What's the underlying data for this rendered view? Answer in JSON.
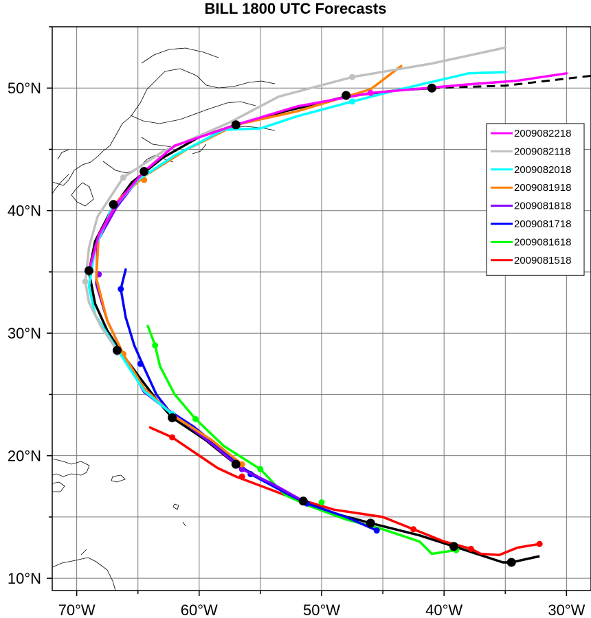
{
  "title": "BILL 1800 UTC Forecasts",
  "chart_data": {
    "type": "line",
    "title": "BILL 1800 UTC Forecasts",
    "xlim": [
      -72,
      -28
    ],
    "ylim": [
      9,
      55
    ],
    "x_ticks": [
      {
        "value": -70,
        "label": "70°W"
      },
      {
        "value": -60,
        "label": "60°W"
      },
      {
        "value": -50,
        "label": "50°W"
      },
      {
        "value": -40,
        "label": "40°W"
      },
      {
        "value": -30,
        "label": "30°W"
      }
    ],
    "y_ticks": [
      {
        "value": 10,
        "label": "10°N"
      },
      {
        "value": 20,
        "label": "20°N"
      },
      {
        "value": 30,
        "label": "30°N"
      },
      {
        "value": 40,
        "label": "40°N"
      },
      {
        "value": 50,
        "label": "50°N"
      }
    ],
    "grid": true,
    "legend_position": "right",
    "best_track": {
      "color": "#000000",
      "points": [
        [
          -32.2,
          11.8
        ],
        [
          -34.5,
          11.3
        ],
        [
          -35.2,
          11.3
        ],
        [
          -39.2,
          12.6
        ],
        [
          -42,
          13.5
        ],
        [
          -46,
          14.5
        ],
        [
          -49,
          15.3
        ],
        [
          -51.5,
          16.3
        ],
        [
          -54,
          17.6
        ],
        [
          -57,
          19.3
        ],
        [
          -59.5,
          21.3
        ],
        [
          -62.2,
          23.1
        ],
        [
          -63.5,
          24.6
        ],
        [
          -64.8,
          26.3
        ],
        [
          -66.2,
          28.2
        ],
        [
          -67.5,
          30.2
        ],
        [
          -68.5,
          32.4
        ],
        [
          -69,
          35
        ],
        [
          -68.5,
          37.5
        ],
        [
          -67.2,
          40
        ],
        [
          -65.5,
          42.3
        ],
        [
          -63,
          44.3
        ],
        [
          -60,
          46
        ],
        [
          -57,
          47
        ],
        [
          -53,
          48.1
        ],
        [
          -48,
          49.3
        ],
        [
          -44,
          49.8
        ],
        [
          -41,
          50
        ]
      ],
      "markers": [
        [
          -34.5,
          11.3
        ],
        [
          -39.2,
          12.6
        ],
        [
          -46,
          14.5
        ],
        [
          -51.5,
          16.3
        ],
        [
          -57,
          19.3
        ],
        [
          -62.2,
          23.1
        ],
        [
          -66.7,
          28.6
        ],
        [
          -69,
          35.1
        ],
        [
          -67,
          40.5
        ],
        [
          -64.5,
          43.2
        ],
        [
          -57,
          47
        ],
        [
          -48,
          49.4
        ],
        [
          -41,
          50
        ]
      ]
    },
    "extended_track": {
      "color": "#000000",
      "points": [
        [
          -41,
          50
        ],
        [
          -35,
          50.2
        ],
        [
          -28,
          51
        ]
      ]
    },
    "series": [
      {
        "name": "2009082218",
        "color": "#ff00ff",
        "points": [
          [
            -69,
            35.1
          ],
          [
            -68.2,
            38
          ],
          [
            -66.8,
            40.5
          ],
          [
            -64.5,
            43.2
          ],
          [
            -62,
            45.3
          ],
          [
            -57,
            47
          ],
          [
            -52,
            48.5
          ],
          [
            -46,
            49.6
          ],
          [
            -38,
            50.3
          ],
          [
            -34,
            50.6
          ],
          [
            -30,
            51.2
          ]
        ],
        "markers": [
          [
            -69,
            35.1
          ],
          [
            -64.5,
            43.2
          ],
          [
            -46,
            49.6
          ]
        ]
      },
      {
        "name": "2009082118",
        "color": "#c0c0c0",
        "points": [
          [
            -66.7,
            28.6
          ],
          [
            -68,
            30.5
          ],
          [
            -69,
            32.5
          ],
          [
            -69.3,
            34.2
          ],
          [
            -69,
            37
          ],
          [
            -68.3,
            39.5
          ],
          [
            -66.2,
            42.7
          ],
          [
            -63,
            44.8
          ],
          [
            -57.5,
            47.2
          ],
          [
            -53.5,
            49.3
          ],
          [
            -47.5,
            50.9
          ],
          [
            -41,
            52
          ],
          [
            -35,
            53.3
          ]
        ],
        "markers": [
          [
            -66.7,
            28.4
          ],
          [
            -69.3,
            34.2
          ],
          [
            -66.2,
            42.7
          ],
          [
            -47.5,
            50.9
          ]
        ]
      },
      {
        "name": "2009082018",
        "color": "#00ffff",
        "points": [
          [
            -62.2,
            23.4
          ],
          [
            -64.5,
            25.3
          ],
          [
            -66.7,
            28.7
          ],
          [
            -68.5,
            31.5
          ],
          [
            -69,
            33.8
          ],
          [
            -68.5,
            37
          ],
          [
            -67.2,
            40
          ],
          [
            -65,
            42.5
          ],
          [
            -62,
            44.5
          ],
          [
            -58,
            46.6
          ],
          [
            -55,
            46.7
          ],
          [
            -52,
            47.7
          ],
          [
            -47.5,
            48.9
          ],
          [
            -44,
            49.8
          ],
          [
            -38,
            51.2
          ],
          [
            -35,
            51.3
          ]
        ],
        "markers": [
          [
            -62.2,
            23.4
          ],
          [
            -66.7,
            28.7
          ],
          [
            -47.5,
            48.9
          ]
        ]
      },
      {
        "name": "2009081918",
        "color": "#ff8000",
        "points": [
          [
            -56.5,
            19.3
          ],
          [
            -59,
            21.3
          ],
          [
            -62,
            23.2
          ],
          [
            -64.5,
            25.5
          ],
          [
            -66.2,
            28.3
          ],
          [
            -67.5,
            31
          ],
          [
            -68.4,
            34.5
          ],
          [
            -68.2,
            38
          ],
          [
            -66.5,
            41
          ],
          [
            -64.5,
            42.8
          ],
          [
            -61,
            45
          ],
          [
            -57,
            47
          ],
          [
            -52,
            48.1
          ],
          [
            -46,
            49.9
          ],
          [
            -43.5,
            51.8
          ]
        ],
        "markers": [
          [
            -56.5,
            19.3
          ],
          [
            -66.2,
            28.3
          ],
          [
            -64.5,
            42.5
          ]
        ]
      },
      {
        "name": "2009081818",
        "color": "#8000ff",
        "points": [
          [
            -51.5,
            16.3
          ],
          [
            -54,
            17.7
          ],
          [
            -56.5,
            18.9
          ],
          [
            -59,
            21
          ],
          [
            -62,
            23.3
          ],
          [
            -64.5,
            25.2
          ],
          [
            -66.2,
            28.3
          ],
          [
            -67.5,
            31
          ],
          [
            -68.4,
            34
          ],
          [
            -68.3,
            37.5
          ],
          [
            -66.8,
            40.2
          ],
          [
            -64.5,
            43.2
          ]
        ],
        "markers": [
          [
            -51.5,
            16.3
          ],
          [
            -56.5,
            18.9
          ],
          [
            -66.2,
            28.3
          ],
          [
            -68.2,
            34.8
          ]
        ]
      },
      {
        "name": "2009081718",
        "color": "#0000ff",
        "points": [
          [
            -45.5,
            13.9
          ],
          [
            -48,
            15
          ],
          [
            -51.2,
            16.1
          ],
          [
            -53,
            17
          ],
          [
            -55.8,
            18.5
          ],
          [
            -58,
            20.4
          ],
          [
            -60.5,
            22.4
          ],
          [
            -62.5,
            23.7
          ],
          [
            -63.5,
            25
          ],
          [
            -64.5,
            27.2
          ],
          [
            -65.3,
            29
          ],
          [
            -66,
            31.3
          ],
          [
            -66.4,
            33.6
          ],
          [
            -66,
            35.2
          ]
        ],
        "markers": [
          [
            -45.5,
            13.9
          ],
          [
            -51.2,
            16.1
          ],
          [
            -55.8,
            18.5
          ],
          [
            -64.8,
            27.5
          ],
          [
            -66.4,
            33.6
          ]
        ]
      },
      {
        "name": "2009081618",
        "color": "#00ff00",
        "points": [
          [
            -39,
            12.3
          ],
          [
            -41,
            12
          ],
          [
            -42,
            13
          ],
          [
            -45,
            14
          ],
          [
            -48,
            14.8
          ],
          [
            -51,
            15.9
          ],
          [
            -53,
            16.8
          ],
          [
            -55,
            18.9
          ],
          [
            -58,
            20.8
          ],
          [
            -60.3,
            23
          ],
          [
            -62,
            25
          ],
          [
            -63.2,
            27.3
          ],
          [
            -63.6,
            29
          ],
          [
            -64.2,
            30.6
          ]
        ],
        "markers": [
          [
            -39,
            12.3
          ],
          [
            -50,
            16.2
          ],
          [
            -55,
            18.9
          ],
          [
            -60.3,
            23
          ],
          [
            -63.6,
            29
          ]
        ]
      },
      {
        "name": "2009081518",
        "color": "#ff0000",
        "points": [
          [
            -32.2,
            12.8
          ],
          [
            -34,
            12.5
          ],
          [
            -35.5,
            11.9
          ],
          [
            -37,
            12
          ],
          [
            -37.8,
            12.4
          ],
          [
            -40,
            13
          ],
          [
            -42.5,
            14
          ],
          [
            -45,
            15
          ],
          [
            -49,
            15.6
          ],
          [
            -53,
            16.8
          ],
          [
            -57,
            18.3
          ],
          [
            -58.5,
            19
          ],
          [
            -62.2,
            21.5
          ],
          [
            -64,
            22.3
          ]
        ],
        "markers": [
          [
            -32.2,
            12.8
          ],
          [
            -37.8,
            12.4
          ],
          [
            -42.5,
            14
          ],
          [
            -56.5,
            18.3
          ],
          [
            -62.2,
            21.5
          ]
        ]
      }
    ]
  }
}
